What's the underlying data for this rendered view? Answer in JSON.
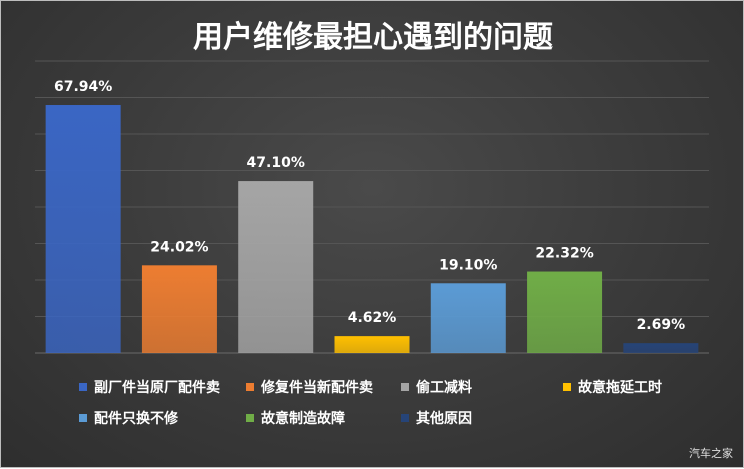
{
  "chart_data": {
    "type": "bar",
    "title": "用户维修最担心遇到的问题",
    "xlabel": "",
    "ylabel": "",
    "ylim": [
      0,
      80
    ],
    "grid": true,
    "legend_position": "bottom",
    "categories": [
      "副厂件当原厂配件卖",
      "修复件当新配件卖",
      "偷工减料",
      "故意拖延工时",
      "配件只换不修",
      "故意制造故障",
      "其他原因"
    ],
    "values": [
      67.94,
      24.02,
      47.1,
      4.62,
      19.1,
      22.32,
      2.69
    ],
    "data_labels": [
      "67.94%",
      "24.02%",
      "47.10%",
      "4.62%",
      "19.10%",
      "22.32%",
      "2.69%"
    ],
    "colors": [
      "#3a66c4",
      "#ed7d31",
      "#a5a5a5",
      "#ffc000",
      "#5b9bd5",
      "#70ad47",
      "#264478"
    ]
  },
  "watermark": "汽车之家"
}
